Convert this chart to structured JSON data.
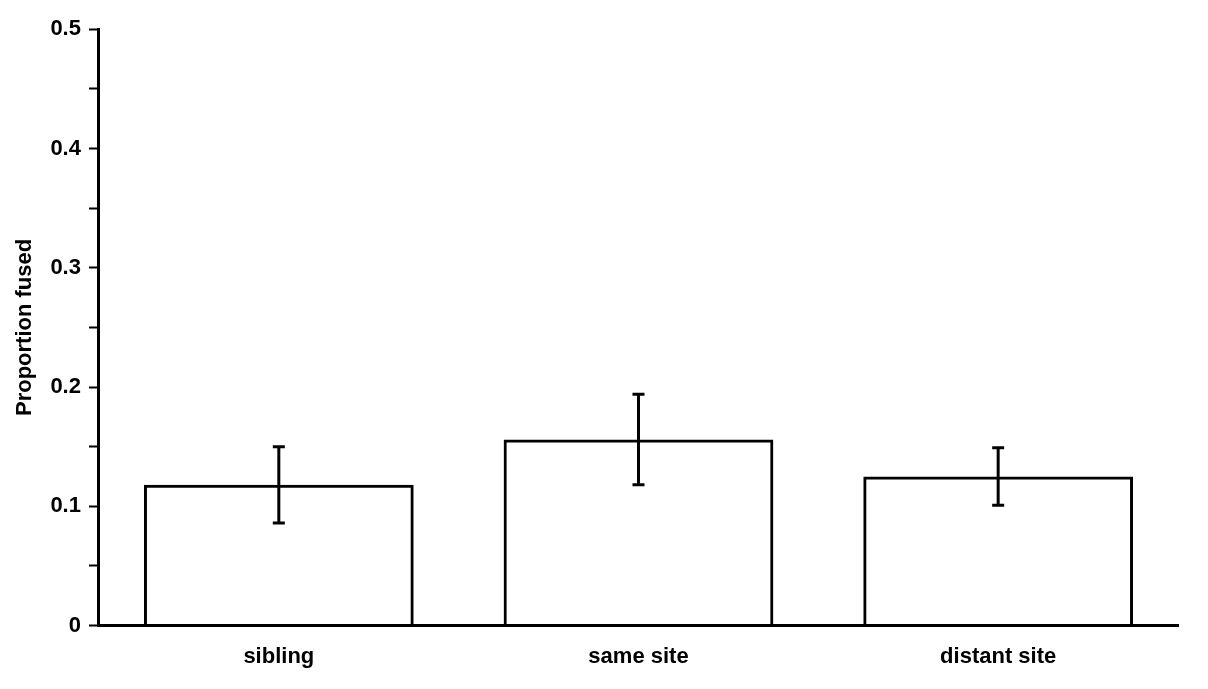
{
  "chart_data": {
    "type": "bar",
    "ylabel": "Proportion fused",
    "categories": [
      "sibling",
      "same site",
      "distant site"
    ],
    "values": [
      0.118,
      0.156,
      0.125
    ],
    "errors": [
      0.032,
      0.038,
      0.024
    ],
    "color": "#000000",
    "ylim": [
      0,
      0.5
    ],
    "yticks": [
      0,
      {
        "value": 0.05,
        "label": null
      },
      {
        "value": 0.1,
        "label": "0.1"
      },
      {
        "value": 0.15,
        "label": null
      },
      {
        "value": 0.2,
        "label": "0.2"
      },
      {
        "value": 0.25,
        "label": null
      },
      {
        "value": 0.3,
        "label": "0.3"
      },
      {
        "value": 0.35,
        "label": null
      },
      {
        "value": 0.4,
        "label": "0.4"
      },
      {
        "value": 0.45,
        "label": null
      },
      {
        "value": 0.5,
        "label": "0.5"
      }
    ],
    "grid": false,
    "legend": false
  }
}
